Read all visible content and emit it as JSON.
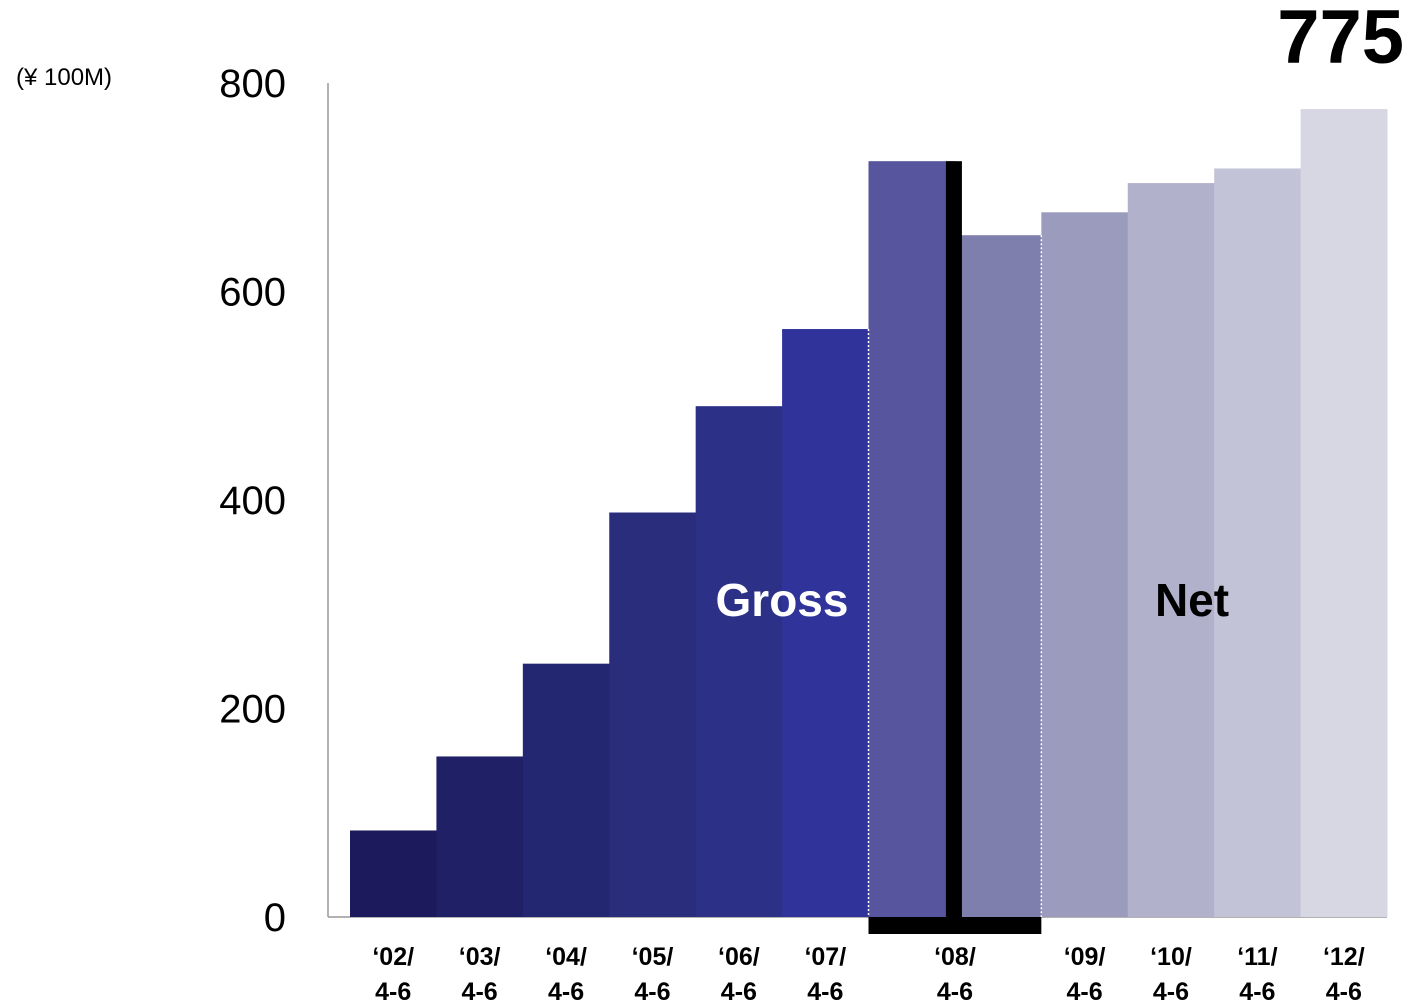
{
  "chart_data": {
    "type": "bar",
    "unit_label": "(¥ 100M)",
    "highlight_value": "775",
    "ylim": [
      0,
      800
    ],
    "y_ticks": [
      "0",
      "200",
      "400",
      "600",
      "800"
    ],
    "categories": [
      [
        "‘02/",
        "4-6"
      ],
      [
        "‘03/",
        "4-6"
      ],
      [
        "‘04/",
        "4-6"
      ],
      [
        "‘05/",
        "4-6"
      ],
      [
        "‘06/",
        "4-6"
      ],
      [
        "‘07/",
        "4-6"
      ],
      [
        "‘08/",
        "4-6"
      ],
      [
        "‘08/",
        "4-6"
      ],
      [
        "‘09/",
        "4-6"
      ],
      [
        "‘10/",
        "4-6"
      ],
      [
        "‘11/",
        "4-6"
      ],
      [
        "‘12/",
        "4-6"
      ]
    ],
    "series": [
      {
        "values": [
          83,
          154,
          243,
          388,
          490,
          564,
          725,
          654,
          676,
          704,
          718,
          775
        ],
        "basis": [
          "Gross",
          "Gross",
          "Gross",
          "Gross",
          "Gross",
          "Gross",
          "Gross",
          "Net",
          "Net",
          "Net",
          "Net",
          "Net"
        ]
      }
    ],
    "section_labels": [
      "Gross",
      "Net"
    ],
    "colors": [
      "#1c1a5c",
      "#1f2066",
      "#232670",
      "#2a2c7c",
      "#2c3086",
      "#30349a",
      "#57559e",
      "#7f7fae",
      "#9b9bbd",
      "#b1b1cc",
      "#c3c3d8",
      "#d7d7e4"
    ],
    "divider_color": "#000000",
    "grid": false
  }
}
